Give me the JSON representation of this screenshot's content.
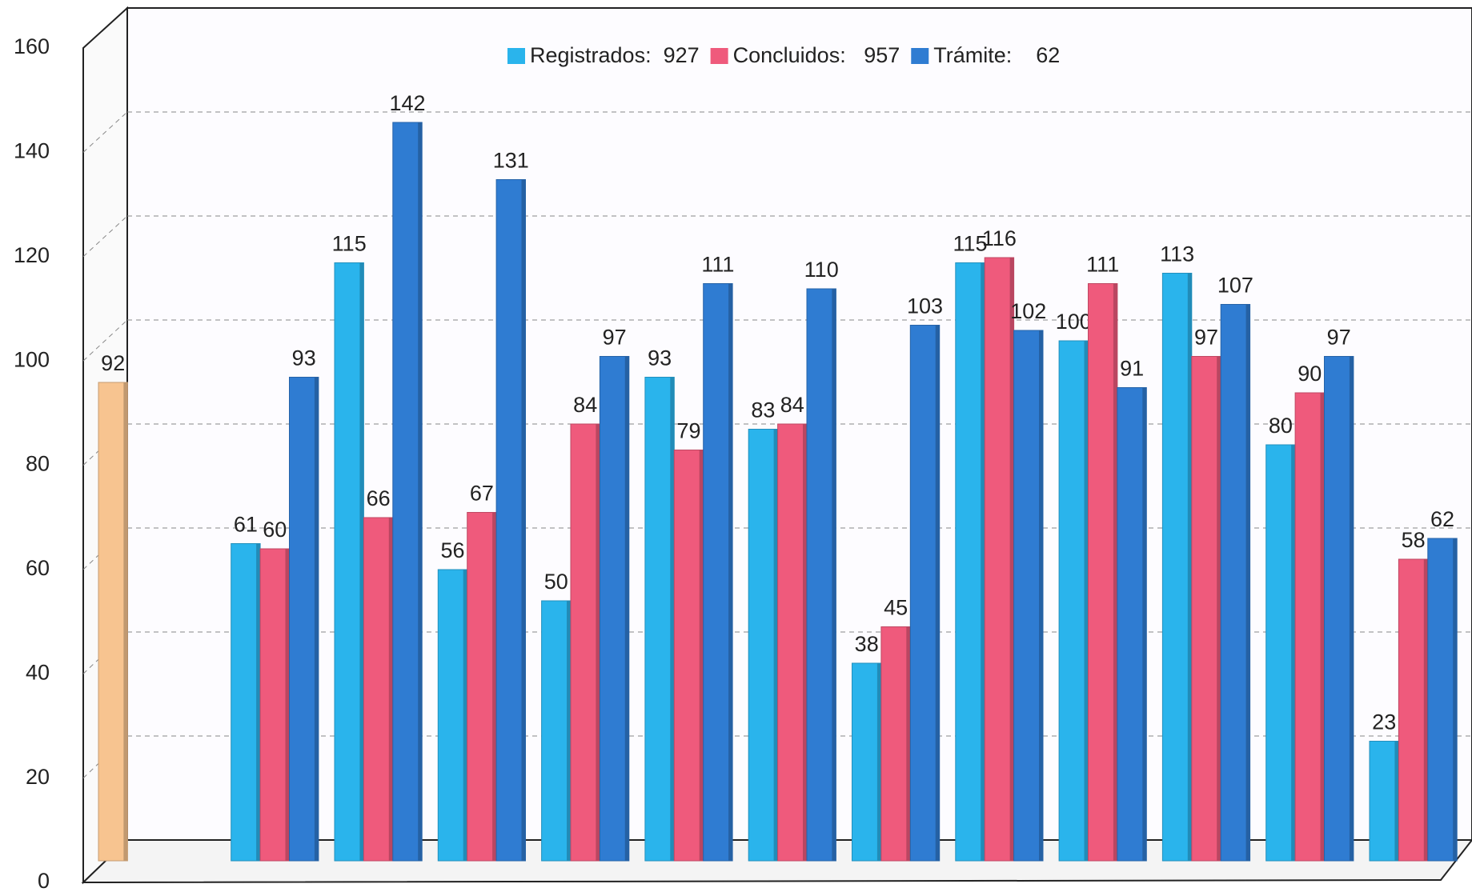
{
  "chart_data": {
    "type": "bar",
    "categories": [
      null,
      null,
      null,
      null,
      null,
      null,
      null,
      null,
      null,
      null,
      null,
      null,
      null
    ],
    "series": [
      {
        "color": "#f7c490",
        "values": [
          92,
          null,
          null,
          null,
          null,
          null,
          null,
          null,
          null,
          null,
          null,
          null,
          null
        ]
      },
      {
        "name": "Registrados:  927",
        "color": "#2ab4ec",
        "values": [
          null,
          61,
          115,
          56,
          50,
          93,
          83,
          38,
          115,
          100,
          113,
          80,
          23
        ]
      },
      {
        "name": "Concluidos:   957",
        "color": "#ef5a7c",
        "values": [
          null,
          60,
          66,
          67,
          84,
          79,
          84,
          45,
          116,
          111,
          97,
          90,
          58
        ]
      },
      {
        "name": "Trámite:    62",
        "color": "#2f7cd2",
        "values": [
          null,
          93,
          142,
          131,
          97,
          111,
          110,
          103,
          102,
          91,
          107,
          97,
          62
        ]
      }
    ],
    "ylim": [
      0,
      160
    ],
    "yticks": [
      0,
      20,
      40,
      60,
      80,
      100,
      120,
      140,
      160
    ],
    "grid": true,
    "legend": "top"
  }
}
